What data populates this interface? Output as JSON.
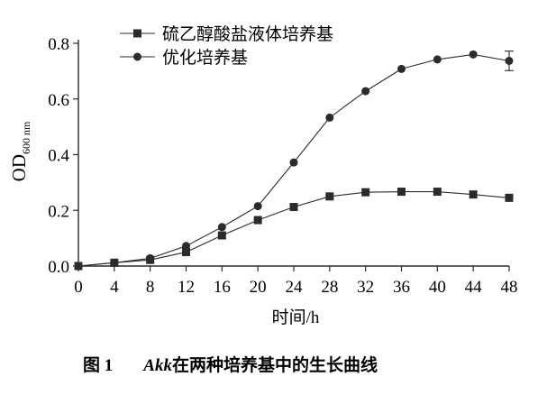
{
  "chart_data": {
    "type": "line",
    "x": [
      0,
      4,
      8,
      12,
      16,
      20,
      24,
      28,
      32,
      36,
      40,
      44,
      48
    ],
    "series": [
      {
        "name": "硫乙醇酸盐液体培养基",
        "marker": "square",
        "values": [
          0.0,
          0.012,
          0.022,
          0.05,
          0.11,
          0.165,
          0.212,
          0.25,
          0.265,
          0.267,
          0.267,
          0.257,
          0.245
        ]
      },
      {
        "name": "优化培养基",
        "marker": "circle",
        "values": [
          0.0,
          0.012,
          0.028,
          0.072,
          0.14,
          0.215,
          0.372,
          0.533,
          0.628,
          0.708,
          0.742,
          0.76,
          0.737
        ],
        "error_last": 0.035
      }
    ],
    "xlabel": "时间/h",
    "ylabel_main": "OD",
    "ylabel_sub": "600 nm",
    "xlim": [
      0,
      48
    ],
    "ylim": [
      0,
      0.8
    ],
    "xticks": [
      "0",
      "4",
      "8",
      "12",
      "16",
      "20",
      "24",
      "28",
      "32",
      "36",
      "40",
      "44",
      "48"
    ],
    "yticks": [
      "0.0",
      "0.2",
      "0.4",
      "0.6",
      "0.8"
    ],
    "grid": false,
    "legend_position": "top-left",
    "color": "#2b2b2b"
  },
  "caption": {
    "label": "图 1",
    "italic": "Akk",
    "text": "在两种培养基中的生长曲线"
  }
}
